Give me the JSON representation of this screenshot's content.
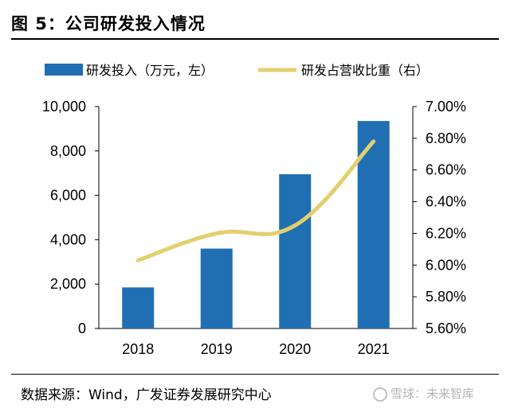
{
  "page": {
    "title": "图 5：公司研发投入情况",
    "source": "数据来源：Wind，广发证券发展研究中心",
    "watermark": "雪球：未来智库"
  },
  "chart_data": {
    "type": "bar",
    "categories": [
      "2018",
      "2019",
      "2020",
      "2021"
    ],
    "series": [
      {
        "name": "研发投入（万元，左）",
        "type": "bar",
        "axis": "left",
        "values": [
          1850,
          3600,
          6950,
          9350
        ],
        "color": "#1f6fb2"
      },
      {
        "name": "研发占营收比重（右）",
        "type": "line",
        "axis": "right",
        "values": [
          6.03,
          6.2,
          6.25,
          6.78
        ],
        "color": "#e3cf6e"
      }
    ],
    "y_left": {
      "ylim": [
        0,
        10000
      ],
      "ticks": [
        "0",
        "2,000",
        "4,000",
        "6,000",
        "8,000",
        "10,000"
      ]
    },
    "y_right": {
      "ylim": [
        5.6,
        7.0
      ],
      "ticks": [
        "5.60%",
        "5.80%",
        "6.00%",
        "6.20%",
        "6.40%",
        "6.60%",
        "6.80%",
        "7.00%"
      ]
    },
    "legend_position": "top",
    "grid": false
  }
}
